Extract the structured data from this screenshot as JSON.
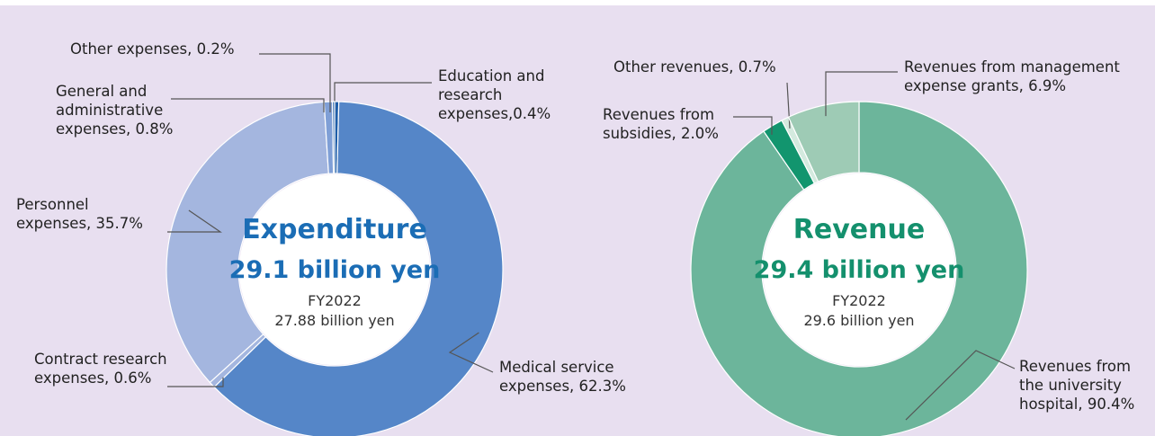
{
  "chart_data": [
    {
      "type": "pie",
      "title": "Expenditure",
      "subtitle": "29.1 billion yen",
      "note": [
        "FY2022",
        "27.88 billion yen"
      ],
      "title_color": "#1b6db5",
      "values": [
        0.4,
        62.3,
        0.6,
        35.7,
        0.8,
        0.2
      ],
      "value_labels": [
        [
          "Education and",
          "research",
          "expenses,0.4%"
        ],
        [
          "Medical service",
          "expenses, 62.3%"
        ],
        [
          "Contract research",
          "expenses, 0.6%"
        ],
        [
          "Personnel",
          "expenses, 35.7%"
        ],
        [
          "General and",
          "administrative",
          "expenses, 0.8%"
        ],
        [
          "Other expenses, 0.2%"
        ]
      ],
      "colors": [
        "#1f5ea8",
        "#5586c8",
        "#a4b6df",
        "#a4b6df",
        "#7f9fd6",
        "#1f5ea8"
      ]
    },
    {
      "type": "pie",
      "title": "Revenue",
      "subtitle": "29.4 billion yen",
      "note": [
        "FY2022",
        "29.6 billion yen"
      ],
      "title_color": "#14906d",
      "values": [
        90.4,
        2.0,
        0.7,
        6.9
      ],
      "value_labels": [
        [
          "Revenues from",
          "the university",
          "hospital, 90.4%"
        ],
        [
          "Revenues from",
          "subsidies, 2.0%"
        ],
        [
          "Other revenues, 0.7%"
        ],
        [
          "Revenues from management",
          "expense grants, 6.9%"
        ]
      ],
      "colors": [
        "#6cb59b",
        "#12956e",
        "#d4eadf",
        "#9ecbb5"
      ]
    }
  ]
}
